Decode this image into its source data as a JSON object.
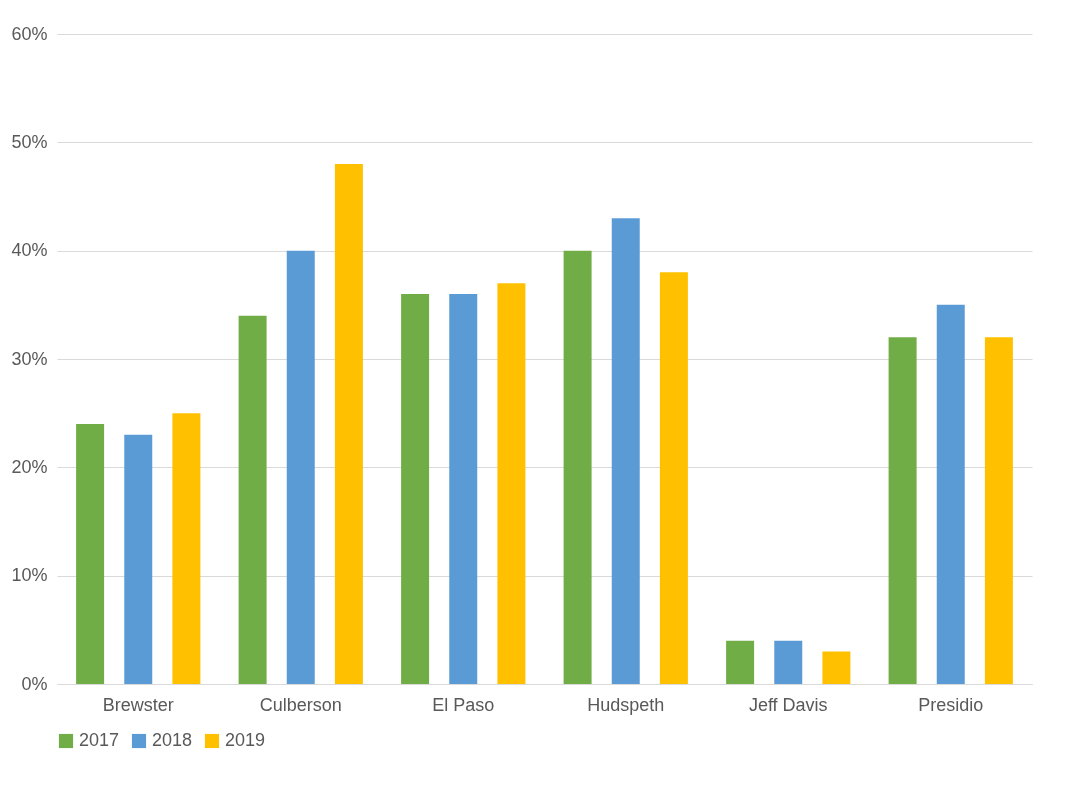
{
  "chart_data": {
    "type": "bar",
    "categories": [
      "Brewster",
      "Culberson",
      "El Paso",
      "Hudspeth",
      "Jeff Davis",
      "Presidio"
    ],
    "series": [
      {
        "name": "2017",
        "color": "#70ad47",
        "values": [
          24,
          34,
          36,
          40,
          4,
          32
        ]
      },
      {
        "name": "2018",
        "color": "#5b9bd5",
        "values": [
          23,
          40,
          36,
          43,
          4,
          35
        ]
      },
      {
        "name": "2019",
        "color": "#ffc000",
        "values": [
          25,
          48,
          37,
          38,
          3,
          32
        ]
      }
    ],
    "ylim": [
      0,
      60
    ],
    "yticks": [
      {
        "value": 0,
        "label": "0%"
      },
      {
        "value": 10,
        "label": "10%"
      },
      {
        "value": 20,
        "label": "20%"
      },
      {
        "value": 30,
        "label": "30%"
      },
      {
        "value": 40,
        "label": "40%"
      },
      {
        "value": 50,
        "label": "50%"
      },
      {
        "value": 60,
        "label": "60%"
      }
    ],
    "grid": "y",
    "legend": "bottom"
  }
}
